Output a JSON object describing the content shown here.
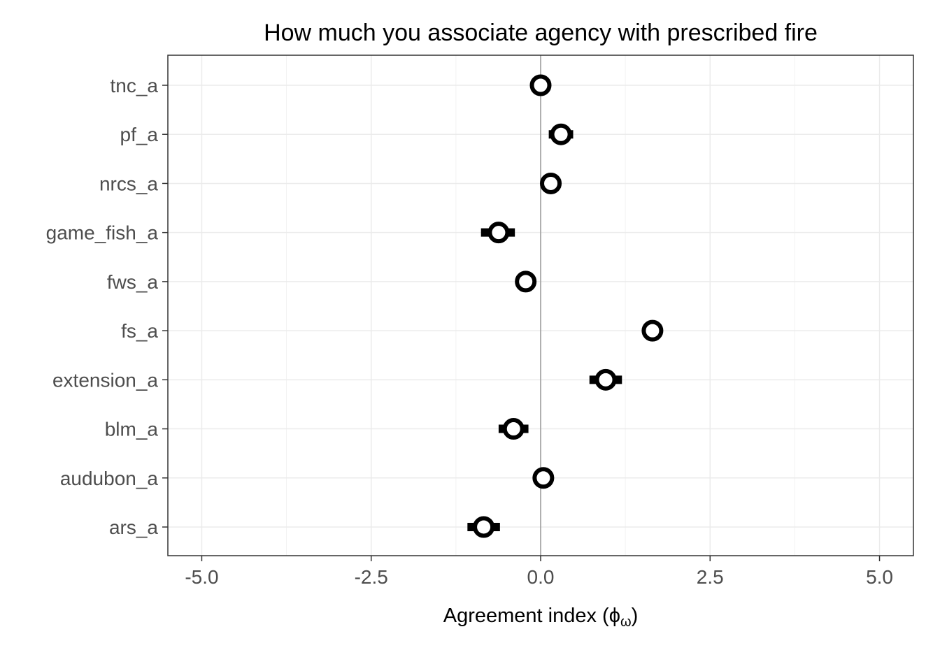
{
  "chart_data": {
    "type": "scatter",
    "title": "How much you associate agency with prescribed fire",
    "xlabel": "Agreement index (ϕω)",
    "xlabel_parts": {
      "text": "Agreement index (",
      "symbol": "ϕ",
      "subscript": "ω",
      "close": ")"
    },
    "ylabel": "",
    "xlim": [
      -5.5,
      5.5
    ],
    "x_ticks": [
      -5.0,
      -2.5,
      0.0,
      2.5,
      5.0
    ],
    "x_tick_labels": [
      "-5.0",
      "-2.5",
      "0.0",
      "2.5",
      "5.0"
    ],
    "reference_line_x": 0,
    "grid": true,
    "categories": [
      "tnc_a",
      "pf_a",
      "nrcs_a",
      "game_fish_a",
      "fws_a",
      "fs_a",
      "extension_a",
      "blm_a",
      "audubon_a",
      "ars_a"
    ],
    "points": [
      {
        "label": "tnc_a",
        "estimate": 0.0,
        "lower": -0.08,
        "upper": 0.08
      },
      {
        "label": "pf_a",
        "estimate": 0.3,
        "lower": 0.12,
        "upper": 0.48
      },
      {
        "label": "nrcs_a",
        "estimate": 0.15,
        "lower": 0.0,
        "upper": 0.3
      },
      {
        "label": "game_fish_a",
        "estimate": -0.62,
        "lower": -0.88,
        "upper": -0.38
      },
      {
        "label": "fws_a",
        "estimate": -0.22,
        "lower": -0.36,
        "upper": -0.08
      },
      {
        "label": "fs_a",
        "estimate": 1.65,
        "lower": 1.57,
        "upper": 1.73
      },
      {
        "label": "extension_a",
        "estimate": 0.96,
        "lower": 0.72,
        "upper": 1.2
      },
      {
        "label": "blm_a",
        "estimate": -0.4,
        "lower": -0.62,
        "upper": -0.18
      },
      {
        "label": "audubon_a",
        "estimate": 0.04,
        "lower": -0.04,
        "upper": 0.12
      },
      {
        "label": "ars_a",
        "estimate": -0.84,
        "lower": -1.08,
        "upper": -0.6
      }
    ],
    "colors": {
      "point_stroke": "#000000",
      "point_fill": "#ffffff",
      "errorbar": "#000000",
      "grid_major": "#ebebeb",
      "grid_minor": "#f2f2f2",
      "reference_line": "#999999",
      "panel_border": "#333333",
      "tick_label": "#4d4d4d"
    }
  }
}
